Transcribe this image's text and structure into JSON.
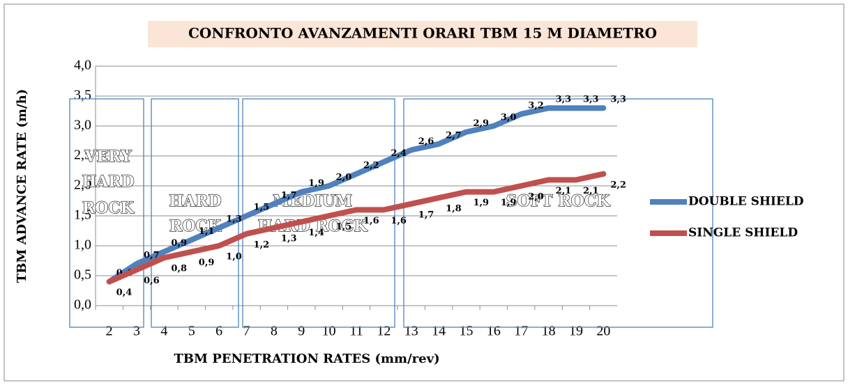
{
  "chart_data": {
    "type": "line",
    "title": "CONFRONTO AVANZAMENTI ORARI TBM 15 M DIAMETRO",
    "x_label": "TBM PENETRATION RATES (mm/rev)",
    "y_label": "TBM ADVANCE RATE (m/h)",
    "categories": [
      "2",
      "3",
      "4",
      "5",
      "6",
      "7",
      "8",
      "9",
      "10",
      "11",
      "12",
      "13",
      "14",
      "15",
      "16",
      "17",
      "18",
      "19",
      "20"
    ],
    "series": [
      {
        "name": "DOUBLE SHIELD",
        "color": "#4f81bd",
        "values": [
          0.4,
          0.7,
          0.9,
          1.1,
          1.3,
          1.5,
          1.7,
          1.9,
          2.0,
          2.2,
          2.4,
          2.6,
          2.7,
          2.9,
          3.0,
          3.2,
          3.3,
          3.3,
          3.3
        ],
        "value_labels": [
          "0,4",
          "0,7",
          "0,9",
          "1,1",
          "1,3",
          "1,5",
          "1,7",
          "1,9",
          "2,0",
          "2,2",
          "2,4",
          "2,6",
          "2,7",
          "2,9",
          "3,0",
          "3,2",
          "3,3",
          "3,3",
          "3,3"
        ]
      },
      {
        "name": "SINGLE SHIELD",
        "color": "#c0504d",
        "values": [
          0.4,
          0.6,
          0.8,
          0.9,
          1.0,
          1.2,
          1.3,
          1.4,
          1.5,
          1.6,
          1.6,
          1.7,
          1.8,
          1.9,
          1.9,
          2.0,
          2.1,
          2.1,
          2.2
        ],
        "value_labels": [
          "0,4",
          "0,6",
          "0,8",
          "0,9",
          "1,0",
          "1,2",
          "1,3",
          "1,4",
          "1,5",
          "1,6",
          "1,6",
          "1,7",
          "1,8",
          "1,9",
          "1,9",
          "2,0",
          "2,1",
          "2,1",
          "2,2"
        ]
      }
    ],
    "ylim": [
      0,
      4
    ],
    "yticks": [
      {
        "value": 0,
        "label": "0,0"
      },
      {
        "value": 0.5,
        "label": "0,5"
      },
      {
        "value": 1,
        "label": "1,0"
      },
      {
        "value": 1.5,
        "label": "1,5"
      },
      {
        "value": 2,
        "label": "2,0"
      },
      {
        "value": 2.5,
        "label": "2,5"
      },
      {
        "value": 3,
        "label": "3,0"
      },
      {
        "value": 3.5,
        "label": "3,5"
      },
      {
        "value": 4,
        "label": "4,0"
      }
    ],
    "grid": true,
    "legend": "right",
    "annotations": [
      {
        "lines": [
          "VERY",
          "HARD",
          "ROCK"
        ]
      },
      {
        "lines": [
          "HARD",
          "ROCK"
        ]
      },
      {
        "lines": [
          "MEDIUM",
          "HARD ROCK"
        ]
      },
      {
        "lines": [
          "SOFT ROCK"
        ]
      }
    ]
  }
}
